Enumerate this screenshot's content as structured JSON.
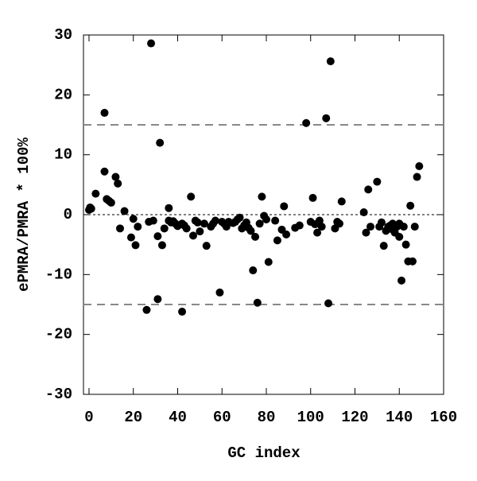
{
  "chart_data": {
    "type": "scatter",
    "xlabel": "GC index",
    "ylabel": "ePMRA/PMRA * 100%",
    "x": [
      0,
      0.5,
      1,
      3,
      7,
      7,
      8,
      9,
      10,
      12,
      13,
      14,
      16,
      19,
      20,
      21,
      22,
      26,
      27,
      28,
      29,
      31,
      31,
      32,
      33,
      34,
      36,
      36,
      37,
      38,
      39,
      40,
      42,
      42,
      43,
      44,
      46,
      47,
      48,
      49,
      50,
      52,
      53,
      55,
      56,
      57,
      59,
      60,
      61,
      62,
      63,
      65,
      66,
      67,
      68,
      69,
      70,
      71,
      72,
      73,
      74,
      75,
      76,
      77,
      78,
      79,
      80,
      81,
      84,
      85,
      87,
      88,
      89,
      93,
      95,
      98,
      100,
      101,
      102,
      103,
      104,
      105,
      107,
      108,
      109,
      111,
      112,
      113,
      114,
      124,
      125,
      126,
      127,
      130,
      131,
      132,
      133,
      134,
      135,
      136,
      137,
      137,
      138,
      139,
      140,
      140,
      141,
      142,
      143,
      144,
      145,
      146,
      147,
      148,
      149
    ],
    "values": [
      0.8,
      1.2,
      1.0,
      3.5,
      17,
      7.2,
      2.6,
      2.3,
      2,
      6.3,
      5.2,
      -2.3,
      0.6,
      -3.8,
      -0.7,
      -5.1,
      -2,
      -15.9,
      -1.2,
      28.6,
      -1,
      -3.6,
      -14.1,
      12,
      -5.1,
      -2.3,
      -1,
      1.1,
      -1.3,
      -1.1,
      -1.5,
      -1.9,
      -1.5,
      -16.2,
      -1.8,
      -2.3,
      3,
      -3.5,
      -1,
      -1.3,
      -2.8,
      -1.5,
      -5.2,
      -2,
      -1.5,
      -1,
      -13,
      -1.2,
      -1.5,
      -2,
      -1.2,
      -1.4,
      -1.2,
      -0.8,
      -0.5,
      -2.3,
      -1.8,
      -1.3,
      -2.2,
      -2.7,
      -9.3,
      -3.7,
      -14.7,
      -1.5,
      3,
      -0.2,
      -0.8,
      -7.9,
      -1,
      -4.3,
      -2.5,
      1.4,
      -3.3,
      -2.2,
      -1.8,
      15.3,
      -1.2,
      2.8,
      -1.6,
      -3,
      -1,
      -2,
      16.1,
      -14.8,
      25.6,
      -2.3,
      -1.2,
      -1.5,
      2.2,
      0.4,
      -3,
      4.2,
      -2,
      5.5,
      -2,
      -1.3,
      -5.2,
      -2.7,
      -2,
      -1.8,
      -1.5,
      -2.5,
      -3,
      -2,
      -1.5,
      -3.7,
      -11,
      -2,
      -5,
      -7.8,
      1.5,
      -7.8,
      -2,
      6.3,
      8.1
    ],
    "color": "#000000",
    "xlim": [
      -2.5,
      160
    ],
    "ylim": [
      -30,
      30
    ],
    "xticks": [
      0,
      20,
      40,
      60,
      80,
      100,
      120,
      140,
      160
    ],
    "yticks": [
      -30,
      -20,
      -10,
      0,
      10,
      20,
      30
    ],
    "dashed_lines": [
      15,
      -15
    ],
    "dotted_lines": [
      0
    ]
  }
}
